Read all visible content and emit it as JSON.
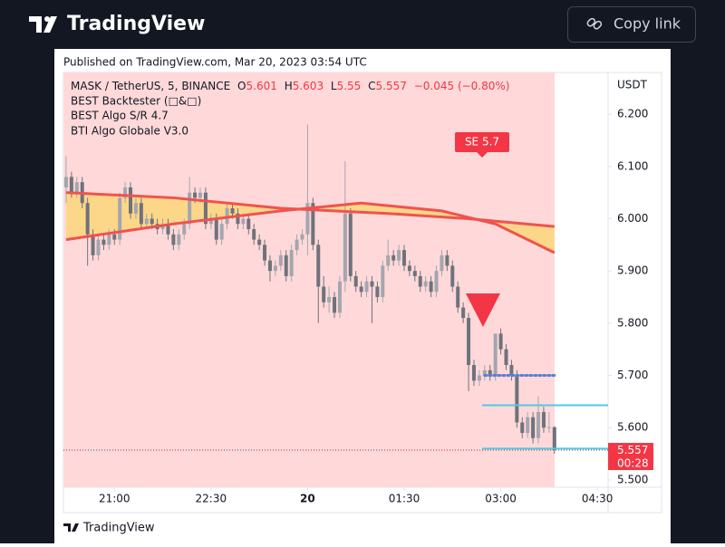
{
  "brand": "TradingView",
  "copy_link": "Copy link",
  "published": "Published on TradingView.com, Mar 20, 2023 03:54 UTC",
  "footer_brand": "TradingView",
  "chart_data": {
    "type": "candlestick",
    "symbol": "MASK / TetherUS, 5, BINANCE",
    "ohlc_labels": [
      "O",
      "H",
      "L",
      "C"
    ],
    "change": "−0.045 (−0.80%)",
    "indicators": [
      "BEST Backtester (□&□)",
      "BEST Algo S/R 4.7",
      "BTI Algo Globale V3.0"
    ],
    "currency": "USDT",
    "signal_label": "SE 5.7",
    "countdown": "00:28",
    "up_color": "#a3a6af",
    "down_color": "#6f727c",
    "signal_color": "#f23645",
    "candles": [
      [
        6.06,
        6.12,
        6.03,
        6.08
      ],
      [
        6.08,
        6.09,
        6.04,
        6.05
      ],
      [
        6.05,
        6.08,
        6.04,
        6.07
      ],
      [
        6.07,
        6.08,
        6.02,
        6.03
      ],
      [
        6.03,
        6.04,
        5.91,
        5.97
      ],
      [
        5.97,
        5.98,
        5.92,
        5.93
      ],
      [
        5.93,
        5.97,
        5.92,
        5.96
      ],
      [
        5.96,
        5.97,
        5.94,
        5.95
      ],
      [
        5.95,
        5.98,
        5.94,
        5.97
      ],
      [
        5.97,
        5.98,
        5.95,
        5.96
      ],
      [
        5.96,
        6.05,
        5.95,
        6.04
      ],
      [
        6.04,
        6.07,
        6.03,
        6.06
      ],
      [
        6.06,
        6.07,
        6.0,
        6.01
      ],
      [
        6.01,
        6.04,
        6.0,
        6.03
      ],
      [
        6.03,
        6.04,
        5.98,
        5.99
      ],
      [
        5.99,
        6.01,
        5.98,
        6.0
      ],
      [
        6.0,
        6.01,
        5.98,
        5.99
      ],
      [
        5.99,
        6.0,
        5.97,
        5.98
      ],
      [
        5.98,
        6.0,
        5.97,
        5.99
      ],
      [
        5.99,
        6.0,
        5.96,
        5.97
      ],
      [
        5.97,
        5.98,
        5.94,
        5.95
      ],
      [
        5.95,
        5.98,
        5.94,
        5.97
      ],
      [
        5.97,
        6.0,
        5.96,
        5.99
      ],
      [
        5.99,
        6.08,
        5.98,
        6.05
      ],
      [
        6.05,
        6.06,
        6.03,
        6.04
      ],
      [
        6.04,
        6.06,
        6.03,
        6.05
      ],
      [
        6.05,
        6.06,
        5.98,
        5.99
      ],
      [
        5.99,
        6.01,
        5.98,
        6.0
      ],
      [
        6.0,
        6.01,
        5.95,
        5.96
      ],
      [
        5.96,
        6.0,
        5.95,
        5.99
      ],
      [
        5.99,
        6.03,
        5.98,
        6.02
      ],
      [
        6.02,
        6.03,
        6.0,
        6.01
      ],
      [
        6.01,
        6.02,
        5.98,
        5.99
      ],
      [
        5.99,
        6.01,
        5.98,
        6.0
      ],
      [
        6.0,
        6.01,
        5.97,
        5.98
      ],
      [
        5.98,
        5.99,
        5.95,
        5.96
      ],
      [
        5.96,
        5.97,
        5.94,
        5.95
      ],
      [
        5.95,
        5.96,
        5.91,
        5.92
      ],
      [
        5.92,
        5.93,
        5.88,
        5.9
      ],
      [
        5.9,
        5.92,
        5.89,
        5.91
      ],
      [
        5.91,
        5.94,
        5.9,
        5.93
      ],
      [
        5.93,
        5.94,
        5.88,
        5.89
      ],
      [
        5.89,
        5.95,
        5.88,
        5.94
      ],
      [
        5.94,
        5.97,
        5.93,
        5.96
      ],
      [
        5.96,
        5.98,
        5.95,
        5.97
      ],
      [
        5.97,
        6.18,
        5.93,
        6.03
      ],
      [
        6.03,
        6.04,
        5.94,
        5.95
      ],
      [
        5.95,
        5.96,
        5.8,
        5.87
      ],
      [
        5.87,
        5.89,
        5.83,
        5.84
      ],
      [
        5.84,
        5.87,
        5.82,
        5.85
      ],
      [
        5.85,
        5.86,
        5.81,
        5.82
      ],
      [
        5.82,
        5.89,
        5.81,
        5.88
      ],
      [
        5.88,
        6.11,
        5.86,
        6.01
      ],
      [
        6.01,
        6.02,
        5.88,
        5.89
      ],
      [
        5.89,
        5.9,
        5.86,
        5.87
      ],
      [
        5.87,
        5.88,
        5.85,
        5.86
      ],
      [
        5.86,
        5.89,
        5.85,
        5.88
      ],
      [
        5.88,
        5.89,
        5.8,
        5.87
      ],
      [
        5.87,
        5.88,
        5.84,
        5.85
      ],
      [
        5.85,
        5.92,
        5.84,
        5.91
      ],
      [
        5.91,
        5.96,
        5.9,
        5.93
      ],
      [
        5.93,
        5.94,
        5.91,
        5.92
      ],
      [
        5.92,
        5.95,
        5.91,
        5.94
      ],
      [
        5.94,
        5.95,
        5.9,
        5.91
      ],
      [
        5.91,
        5.92,
        5.89,
        5.9
      ],
      [
        5.9,
        5.91,
        5.88,
        5.89
      ],
      [
        5.89,
        5.9,
        5.86,
        5.87
      ],
      [
        5.87,
        5.89,
        5.86,
        5.88
      ],
      [
        5.88,
        5.89,
        5.85,
        5.86
      ],
      [
        5.86,
        5.91,
        5.85,
        5.9
      ],
      [
        5.9,
        5.94,
        5.89,
        5.93
      ],
      [
        5.93,
        5.94,
        5.9,
        5.91
      ],
      [
        5.91,
        5.92,
        5.86,
        5.87
      ],
      [
        5.87,
        5.88,
        5.82,
        5.83
      ],
      [
        5.83,
        5.84,
        5.8,
        5.81
      ],
      [
        5.81,
        5.82,
        5.67,
        5.72
      ],
      [
        5.72,
        5.73,
        5.68,
        5.69
      ],
      [
        5.69,
        5.71,
        5.68,
        5.7
      ],
      [
        5.7,
        5.72,
        5.69,
        5.71
      ],
      [
        5.71,
        5.72,
        5.69,
        5.7
      ],
      [
        5.7,
        5.78,
        5.69,
        5.78
      ],
      [
        5.78,
        5.79,
        5.74,
        5.75
      ],
      [
        5.75,
        5.76,
        5.71,
        5.72
      ],
      [
        5.72,
        5.73,
        5.69,
        5.7
      ],
      [
        5.7,
        5.71,
        5.6,
        5.61
      ],
      [
        5.61,
        5.62,
        5.58,
        5.59
      ],
      [
        5.59,
        5.63,
        5.58,
        5.62
      ],
      [
        5.62,
        5.63,
        5.57,
        5.58
      ],
      [
        5.58,
        5.66,
        5.57,
        5.63
      ],
      [
        5.63,
        5.64,
        5.59,
        5.6
      ],
      [
        5.6,
        5.63,
        5.59,
        5.601
      ],
      [
        5.601,
        5.603,
        5.55,
        5.557
      ]
    ],
    "bands": [
      {
        "color": "#f0524f",
        "x": [
          0,
          20,
          40,
          60,
          75,
          91
        ],
        "values": [
          6.05,
          6.04,
          6.02,
          6.01,
          6.0,
          5.985
        ]
      },
      {
        "color": "#f0524f",
        "x": [
          0,
          20,
          40,
          55,
          70,
          80,
          91
        ],
        "values": [
          5.96,
          5.99,
          6.015,
          6.03,
          6.015,
          5.99,
          5.935
        ]
      }
    ],
    "band_fill": "#fbd67a",
    "stop_line": {
      "value": 5.7,
      "x": [
        78,
        91
      ],
      "color": "#5b7fd6"
    },
    "levels": [
      {
        "value": 5.643,
        "color": "#4dc9e6"
      },
      {
        "value": 5.56,
        "color": "#4dc9e6"
      }
    ],
    "xlim": [
      -0.5,
      101
    ],
    "xticks": [
      {
        "value": 9,
        "label": "21:00"
      },
      {
        "value": 27,
        "label": "22:30"
      },
      {
        "value": 45,
        "label": "20"
      },
      {
        "value": 63,
        "label": "01:30"
      },
      {
        "value": 81,
        "label": "03:00"
      },
      {
        "value": 99,
        "label": "04:30"
      }
    ],
    "ylim": [
      5.486,
      6.28
    ],
    "yticks": [
      {
        "value": 5.5,
        "label": "5.500"
      },
      {
        "value": 5.6,
        "label": "5.600"
      },
      {
        "value": 5.7,
        "label": "5.700"
      },
      {
        "value": 5.8,
        "label": "5.800"
      },
      {
        "value": 5.9,
        "label": "5.900"
      },
      {
        "value": 6.0,
        "label": "6.000"
      },
      {
        "value": 6.1,
        "label": "6.100"
      },
      {
        "value": 6.2,
        "label": "6.200"
      }
    ]
  }
}
